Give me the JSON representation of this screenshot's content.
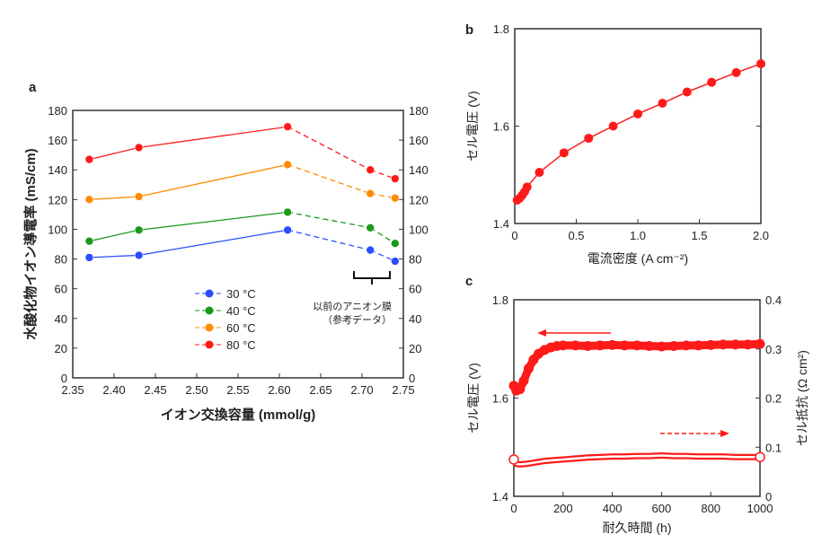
{
  "chart_data": [
    {
      "panel": "a",
      "type": "line",
      "xlabel": "イオン交換容量 (mmol/g)",
      "ylabel": "水酸化物イオン導電率 (mS/cm)",
      "xlim": [
        2.35,
        2.75
      ],
      "ylim": [
        0,
        180
      ],
      "xticks": [
        "2.35",
        "2.40",
        "2.45",
        "2.50",
        "2.55",
        "2.60",
        "2.65",
        "2.70",
        "2.75"
      ],
      "yticks": [
        "0",
        "20",
        "40",
        "60",
        "80",
        "100",
        "120",
        "140",
        "160",
        "180"
      ],
      "x": [
        2.37,
        2.43,
        2.61,
        2.71,
        2.74
      ],
      "series": [
        {
          "name": "30 °C",
          "color": "#2a4dff",
          "values": [
            81,
            82.5,
            99.5,
            86,
            78.5
          ]
        },
        {
          "name": "40 °C",
          "color": "#1a9a1a",
          "values": [
            92,
            99.5,
            111.5,
            101,
            90.5
          ]
        },
        {
          "name": "60 °C",
          "color": "#ff8c00",
          "values": [
            120,
            122,
            143.5,
            124,
            121
          ]
        },
        {
          "name": "80 °C",
          "color": "#ff1a1a",
          "values": [
            147,
            155,
            169,
            140,
            134
          ]
        }
      ],
      "annotation": [
        "以前のアニオン膜",
        "（参考データ）"
      ],
      "legend_position": "bottom-center"
    },
    {
      "panel": "b",
      "type": "line",
      "xlabel": "電流密度 (A cm⁻²)",
      "ylabel": "セル電圧 (V)",
      "xlim": [
        0,
        2.0
      ],
      "ylim": [
        1.4,
        1.8
      ],
      "xticks": [
        "0",
        "0.5",
        "1.0",
        "1.5",
        "2.0"
      ],
      "yticks": [
        "1.4",
        "1.6",
        "1.8"
      ],
      "color": "#ff1a1a",
      "x": [
        0.02,
        0.04,
        0.06,
        0.08,
        0.1,
        0.2,
        0.4,
        0.6,
        0.8,
        1.0,
        1.2,
        1.4,
        1.6,
        1.8,
        2.0
      ],
      "values": [
        1.448,
        1.452,
        1.458,
        1.465,
        1.475,
        1.505,
        1.545,
        1.575,
        1.6,
        1.625,
        1.647,
        1.67,
        1.69,
        1.71,
        1.728
      ]
    },
    {
      "panel": "c",
      "type": "scatter",
      "xlabel": "耐久時間 (h)",
      "ylabel": "セル電圧 (V)",
      "ylabel_right": "セル抵抗 (Ω cm²)",
      "xlim": [
        0,
        1000
      ],
      "ylim": [
        1.4,
        1.8
      ],
      "ylim_right": [
        0,
        0.4
      ],
      "xticks": [
        "0",
        "200",
        "400",
        "600",
        "800",
        "1000"
      ],
      "yticks": [
        "1.4",
        "1.6",
        "1.8"
      ],
      "yticks_right": [
        "0",
        "0.1",
        "0.2",
        "0.3",
        "0.4"
      ],
      "color": "#ff1a1a",
      "voltage": {
        "x": [
          0,
          10,
          25,
          40,
          60,
          80,
          100,
          125,
          150,
          175,
          200,
          250,
          300,
          350,
          400,
          450,
          500,
          550,
          600,
          650,
          700,
          750,
          800,
          850,
          900,
          950,
          1000
        ],
        "values": [
          1.625,
          1.615,
          1.618,
          1.635,
          1.66,
          1.678,
          1.69,
          1.698,
          1.703,
          1.706,
          1.707,
          1.707,
          1.706,
          1.707,
          1.708,
          1.707,
          1.707,
          1.706,
          1.705,
          1.706,
          1.707,
          1.707,
          1.708,
          1.709,
          1.709,
          1.709,
          1.71
        ]
      },
      "resistance": {
        "x": [
          0,
          10,
          25,
          50,
          75,
          100,
          125,
          150,
          200,
          250,
          300,
          350,
          400,
          450,
          500,
          550,
          600,
          650,
          700,
          750,
          800,
          850,
          900,
          950,
          1000
        ],
        "values": [
          0.075,
          0.066,
          0.065,
          0.066,
          0.068,
          0.07,
          0.072,
          0.073,
          0.075,
          0.077,
          0.079,
          0.08,
          0.081,
          0.081,
          0.082,
          0.082,
          0.083,
          0.082,
          0.082,
          0.081,
          0.081,
          0.081,
          0.08,
          0.08,
          0.08
        ]
      }
    }
  ],
  "panel_labels": [
    "a",
    "b",
    "c"
  ]
}
